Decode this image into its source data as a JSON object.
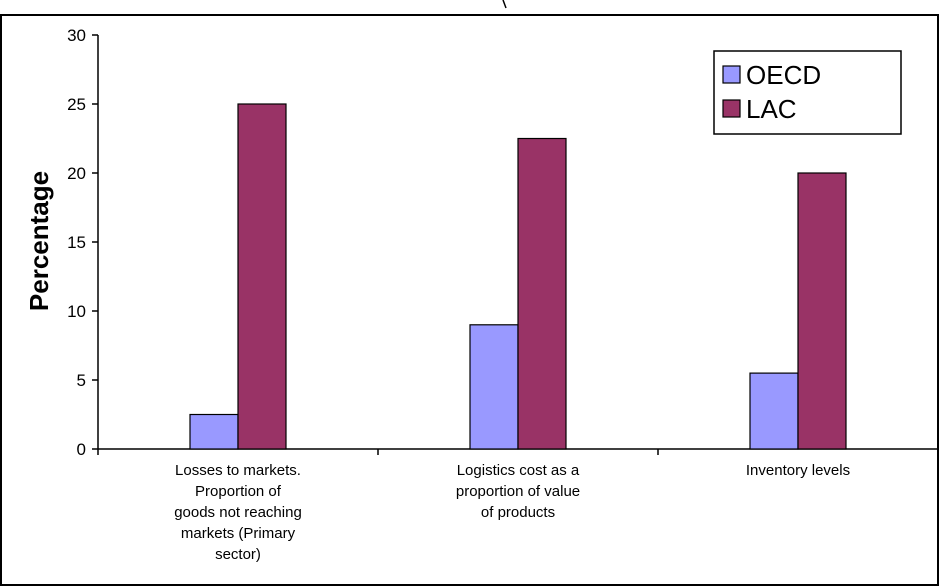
{
  "chart_data": {
    "type": "bar",
    "title": "",
    "xlabel": "",
    "ylabel": "Percentage",
    "ylim": [
      0,
      30
    ],
    "yticks": [
      0,
      5,
      10,
      15,
      20,
      25,
      30
    ],
    "grid": false,
    "legend_position": "top-right",
    "categories": [
      [
        "Losses to markets.",
        "Proportion of",
        "goods not reaching",
        "markets (Primary",
        "sector)"
      ],
      [
        "Logistics cost as a",
        "proportion of value",
        "of products"
      ],
      [
        "Inventory levels"
      ]
    ],
    "series": [
      {
        "name": "OECD",
        "color": "#9999ff",
        "values": [
          2.5,
          9,
          5.5
        ]
      },
      {
        "name": "LAC",
        "color": "#993366",
        "values": [
          25,
          22.5,
          20
        ]
      }
    ]
  }
}
